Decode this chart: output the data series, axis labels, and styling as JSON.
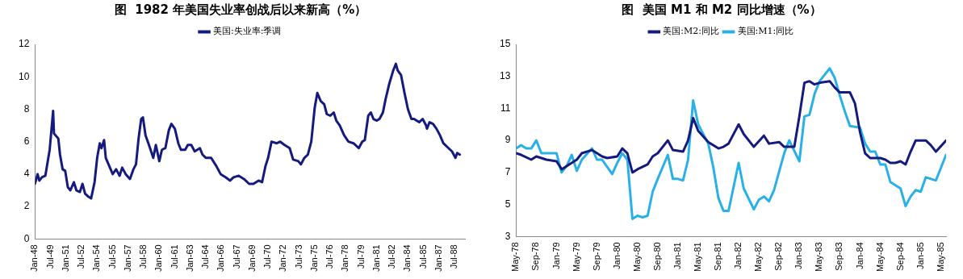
{
  "chart_data": [
    {
      "type": "line",
      "title": "图  1982 年美国失业率创战后以来新高（%）",
      "legend": "top",
      "marker": "none",
      "line_style": "solid",
      "xlim": [
        "1948-01",
        "1989-07"
      ],
      "xticks": [
        {
          "value": "1948-01",
          "label": "Jan-48"
        },
        {
          "value": "1949-07",
          "label": "Jul-49"
        },
        {
          "value": "1951-01",
          "label": "Jan-51"
        },
        {
          "value": "1952-07",
          "label": "Jul-52"
        },
        {
          "value": "1954-01",
          "label": "Jan-54"
        },
        {
          "value": "1955-07",
          "label": "Jul-55"
        },
        {
          "value": "1957-01",
          "label": "Jan-57"
        },
        {
          "value": "1958-07",
          "label": "Jul-58"
        },
        {
          "value": "1960-01",
          "label": "Jan-60"
        },
        {
          "value": "1961-07",
          "label": "Jul-61"
        },
        {
          "value": "1963-01",
          "label": "Jan-63"
        },
        {
          "value": "1964-07",
          "label": "Jul-64"
        },
        {
          "value": "1966-01",
          "label": "Jan-66"
        },
        {
          "value": "1967-07",
          "label": "Jul-67"
        },
        {
          "value": "1969-01",
          "label": "Jan-69"
        },
        {
          "value": "1970-07",
          "label": "Jul-70"
        },
        {
          "value": "1972-01",
          "label": "Jan-72"
        },
        {
          "value": "1973-07",
          "label": "Jul-73"
        },
        {
          "value": "1975-01",
          "label": "Jan-75"
        },
        {
          "value": "1976-07",
          "label": "Jul-76"
        },
        {
          "value": "1978-01",
          "label": "Jan-78"
        },
        {
          "value": "1979-07",
          "label": "Jul-79"
        },
        {
          "value": "1981-01",
          "label": "Jan-81"
        },
        {
          "value": "1982-07",
          "label": "Jul-82"
        },
        {
          "value": "1984-01",
          "label": "Jan-84"
        },
        {
          "value": "1985-07",
          "label": "Jul-85"
        },
        {
          "value": "1987-01",
          "label": "Jan-87"
        },
        {
          "value": "1988-07",
          "label": "Jul-88"
        }
      ],
      "ylim": [
        0,
        12
      ],
      "yticks": [
        0,
        2,
        4,
        6,
        8,
        10,
        12
      ],
      "x": [
        "1948-01",
        "1948-04",
        "1948-06",
        "1948-09",
        "1949-01",
        "1949-06",
        "1949-08",
        "1949-10",
        "1949-11",
        "1950-04",
        "1950-06",
        "1950-09",
        "1950-12",
        "1951-03",
        "1951-06",
        "1951-10",
        "1952-01",
        "1952-05",
        "1952-08",
        "1952-11",
        "1953-03",
        "1953-06",
        "1953-10",
        "1954-01",
        "1954-04",
        "1954-06",
        "1954-09",
        "1954-11",
        "1955-03",
        "1955-07",
        "1955-11",
        "1956-03",
        "1956-06",
        "1956-10",
        "1957-03",
        "1957-07",
        "1957-10",
        "1958-01",
        "1958-04",
        "1958-06",
        "1958-09",
        "1959-01",
        "1959-06",
        "1959-09",
        "1960-01",
        "1960-04",
        "1960-08",
        "1960-12",
        "1961-03",
        "1961-07",
        "1961-11",
        "1962-02",
        "1962-07",
        "1962-10",
        "1963-02",
        "1963-06",
        "1963-12",
        "1964-03",
        "1964-07",
        "1965-01",
        "1965-07",
        "1965-12",
        "1966-06",
        "1966-11",
        "1967-03",
        "1967-09",
        "1968-03",
        "1968-09",
        "1969-02",
        "1969-08",
        "1969-12",
        "1970-04",
        "1970-07",
        "1970-11",
        "1971-05",
        "1971-09",
        "1972-02",
        "1972-08",
        "1972-12",
        "1973-06",
        "1973-09",
        "1974-01",
        "1974-05",
        "1974-09",
        "1975-01",
        "1975-04",
        "1975-08",
        "1975-12",
        "1976-03",
        "1976-07",
        "1976-11",
        "1977-02",
        "1977-06",
        "1977-11",
        "1978-04",
        "1978-10",
        "1979-04",
        "1979-08",
        "1979-11",
        "1980-03",
        "1980-06",
        "1980-09",
        "1981-01",
        "1981-04",
        "1981-08",
        "1981-11",
        "1982-03",
        "1982-08",
        "1982-11",
        "1983-01",
        "1983-05",
        "1983-09",
        "1984-01",
        "1984-05",
        "1984-08",
        "1985-02",
        "1985-06",
        "1985-10",
        "1985-11",
        "1986-02",
        "1986-06",
        "1986-10",
        "1987-02",
        "1987-06",
        "1987-12",
        "1988-04",
        "1988-08",
        "1988-10",
        "1989-01"
      ],
      "series": [
        {
          "name": "美国:失业率:季调",
          "color": "#151a7e",
          "values": [
            3.4,
            4.0,
            3.6,
            3.8,
            3.9,
            5.5,
            6.7,
            7.9,
            6.5,
            6.2,
            5.2,
            4.3,
            4.2,
            3.2,
            3.0,
            3.5,
            3.0,
            2.9,
            3.4,
            2.8,
            2.6,
            2.5,
            3.5,
            5.0,
            5.9,
            5.6,
            6.1,
            5.0,
            4.5,
            4.0,
            4.3,
            3.9,
            4.4,
            4.0,
            3.7,
            4.3,
            4.6,
            6.2,
            7.4,
            7.5,
            6.4,
            5.8,
            5.0,
            5.8,
            4.8,
            5.5,
            5.6,
            6.7,
            7.1,
            6.8,
            5.9,
            5.5,
            5.5,
            5.8,
            5.8,
            5.4,
            5.6,
            5.2,
            5.0,
            5.0,
            4.5,
            4.0,
            3.8,
            3.6,
            3.8,
            3.9,
            3.7,
            3.4,
            3.4,
            3.6,
            3.5,
            4.5,
            5.0,
            6.0,
            5.9,
            6.0,
            5.8,
            5.6,
            4.9,
            4.8,
            4.6,
            5.0,
            5.2,
            6.0,
            8.1,
            9.0,
            8.5,
            8.3,
            7.7,
            7.6,
            7.8,
            7.3,
            7.0,
            6.4,
            6.0,
            5.9,
            5.6,
            6.0,
            6.1,
            7.6,
            7.8,
            7.4,
            7.3,
            7.4,
            7.8,
            8.6,
            9.5,
            10.4,
            10.8,
            10.4,
            10.1,
            9.0,
            8.0,
            7.4,
            7.4,
            7.2,
            7.4,
            7.0,
            6.8,
            7.2,
            7.1,
            6.8,
            6.4,
            5.9,
            5.6,
            5.4,
            5.0,
            5.3,
            5.2
          ]
        }
      ]
    },
    {
      "type": "line",
      "title": "图  美国 M1 和 M2 同比增速（%）",
      "legend": "top",
      "marker": "none",
      "line_style": "solid",
      "xlim": [
        "1978-05",
        "1985-06"
      ],
      "xticks": [
        {
          "value": "1978-05",
          "label": "May-78"
        },
        {
          "value": "1978-09",
          "label": "Sep-78"
        },
        {
          "value": "1979-01",
          "label": "Jan-79"
        },
        {
          "value": "1979-05",
          "label": "May-79"
        },
        {
          "value": "1979-09",
          "label": "Sep-79"
        },
        {
          "value": "1980-01",
          "label": "Jan-80"
        },
        {
          "value": "1980-05",
          "label": "May-80"
        },
        {
          "value": "1980-09",
          "label": "Sep-80"
        },
        {
          "value": "1981-01",
          "label": "Jan-81"
        },
        {
          "value": "1981-05",
          "label": "May-81"
        },
        {
          "value": "1981-09",
          "label": "Sep-81"
        },
        {
          "value": "1982-01",
          "label": "Jan-82"
        },
        {
          "value": "1982-05",
          "label": "May-82"
        },
        {
          "value": "1982-09",
          "label": "Sep-82"
        },
        {
          "value": "1983-01",
          "label": "Jan-83"
        },
        {
          "value": "1983-05",
          "label": "May-83"
        },
        {
          "value": "1983-09",
          "label": "Sep-83"
        },
        {
          "value": "1984-01",
          "label": "Jan-84"
        },
        {
          "value": "1984-05",
          "label": "May-84"
        },
        {
          "value": "1984-09",
          "label": "Sep-84"
        },
        {
          "value": "1985-01",
          "label": "Jan-85"
        },
        {
          "value": "1985-05",
          "label": "May-85"
        }
      ],
      "ylim": [
        3,
        15
      ],
      "yticks": [
        3,
        5,
        7,
        9,
        11,
        13,
        15
      ],
      "series": [
        {
          "name": "美国:M2:同比",
          "color": "#151a7e",
          "x": [
            "1978-05",
            "1978-06",
            "1978-08",
            "1978-09",
            "1978-11",
            "1979-01",
            "1979-02",
            "1979-03",
            "1979-05",
            "1979-06",
            "1979-08",
            "1979-10",
            "1979-11",
            "1980-01",
            "1980-02",
            "1980-03",
            "1980-04",
            "1980-05",
            "1980-07",
            "1980-08",
            "1980-09",
            "1980-11",
            "1980-12",
            "1981-02",
            "1981-03",
            "1981-04",
            "1981-05",
            "1981-07",
            "1981-09",
            "1981-10",
            "1981-11",
            "1982-01",
            "1982-02",
            "1982-04",
            "1982-06",
            "1982-07",
            "1982-09",
            "1982-10",
            "1982-12",
            "1983-01",
            "1983-02",
            "1983-03",
            "1983-04",
            "1983-05",
            "1983-07",
            "1983-08",
            "1983-09",
            "1983-11",
            "1983-12",
            "1984-01",
            "1984-02",
            "1984-03",
            "1984-05",
            "1984-06",
            "1984-07",
            "1984-08",
            "1984-09",
            "1984-10",
            "1984-11",
            "1984-12",
            "1985-02",
            "1985-03",
            "1985-04",
            "1985-06"
          ],
          "values": [
            8.2,
            8.1,
            7.8,
            8.0,
            7.8,
            7.7,
            7.2,
            7.4,
            7.8,
            8.2,
            8.4,
            8.0,
            7.9,
            8.0,
            8.5,
            8.2,
            7.0,
            7.2,
            7.5,
            8.0,
            8.2,
            9.0,
            8.4,
            8.3,
            9.0,
            10.4,
            9.6,
            8.9,
            8.5,
            8.6,
            8.8,
            10.0,
            9.4,
            8.6,
            9.3,
            8.8,
            8.9,
            8.6,
            8.6,
            10.5,
            12.6,
            12.7,
            12.5,
            12.6,
            12.7,
            12.3,
            12.0,
            12.0,
            11.3,
            9.5,
            8.2,
            7.9,
            7.9,
            7.8,
            7.6,
            7.6,
            7.7,
            7.5,
            8.3,
            9.0,
            9.0,
            8.7,
            8.3,
            9.0
          ]
        },
        {
          "name": "美国:M1:同比",
          "color": "#29b0e8",
          "x": [
            "1978-05",
            "1978-06",
            "1978-07",
            "1978-08",
            "1978-09",
            "1978-10",
            "1978-12",
            "1979-01",
            "1979-02",
            "1979-03",
            "1979-04",
            "1979-05",
            "1979-06",
            "1979-08",
            "1979-09",
            "1979-10",
            "1979-12",
            "1980-01",
            "1980-02",
            "1980-03",
            "1980-04",
            "1980-05",
            "1980-06",
            "1980-07",
            "1980-08",
            "1980-09",
            "1980-11",
            "1980-12",
            "1981-01",
            "1981-02",
            "1981-03",
            "1981-04",
            "1981-05",
            "1981-07",
            "1981-08",
            "1981-09",
            "1981-10",
            "1981-11",
            "1982-01",
            "1982-02",
            "1982-04",
            "1982-05",
            "1982-06",
            "1982-07",
            "1982-08",
            "1982-10",
            "1982-11",
            "1983-01",
            "1983-02",
            "1983-03",
            "1983-04",
            "1983-05",
            "1983-07",
            "1983-08",
            "1983-09",
            "1983-10",
            "1983-11",
            "1984-01",
            "1984-02",
            "1984-03",
            "1984-04",
            "1984-05",
            "1984-06",
            "1984-07",
            "1984-09",
            "1984-10",
            "1984-11",
            "1984-12",
            "1985-01",
            "1985-02",
            "1985-04",
            "1985-06"
          ],
          "values": [
            8.5,
            8.7,
            8.5,
            8.5,
            9.0,
            8.2,
            8.2,
            8.2,
            7.0,
            7.4,
            8.1,
            7.1,
            7.8,
            8.5,
            7.8,
            7.8,
            6.9,
            7.6,
            8.2,
            7.8,
            4.1,
            4.3,
            4.2,
            4.3,
            5.8,
            6.6,
            8.1,
            6.6,
            6.6,
            6.5,
            7.8,
            11.5,
            10.0,
            8.8,
            7.3,
            5.4,
            4.6,
            4.6,
            7.6,
            6.0,
            4.7,
            5.3,
            5.5,
            5.2,
            5.9,
            8.2,
            9.0,
            7.7,
            10.5,
            10.6,
            11.9,
            12.7,
            13.5,
            12.9,
            11.8,
            10.8,
            9.9,
            9.8,
            8.8,
            8.3,
            8.3,
            7.5,
            7.5,
            6.4,
            6.0,
            4.9,
            5.5,
            5.9,
            5.8,
            6.7,
            6.5,
            8.1
          ]
        }
      ]
    }
  ]
}
